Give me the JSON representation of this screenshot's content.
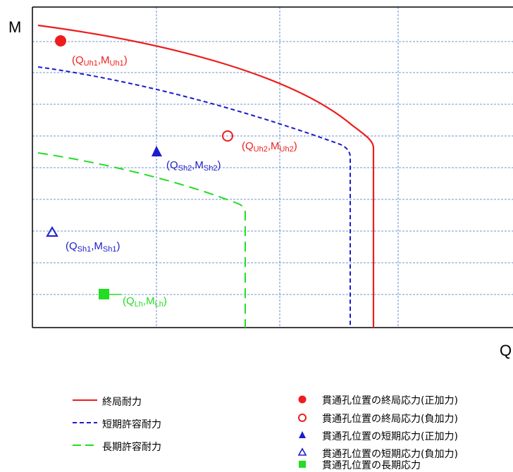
{
  "axes": {
    "y_label": "M",
    "x_label": "Q"
  },
  "colors": {
    "ultimate": "#ee1c1c",
    "short": "#1c1ccc",
    "long": "#22dd22",
    "grid": "#4472c4"
  },
  "points": [
    {
      "id": "uh1",
      "marker": "filled-circle",
      "color": "#ee1c1c",
      "label": {
        "base1": "(Q",
        "sub1": "Uh1",
        "base2": ",M",
        "sub2": "Uh1",
        "end": ")"
      }
    },
    {
      "id": "uh2",
      "marker": "open-circle",
      "color": "#ee1c1c",
      "label": {
        "base1": "(Q",
        "sub1": "Uh2",
        "base2": ",M",
        "sub2": "Uh2",
        "end": ")"
      }
    },
    {
      "id": "sh2",
      "marker": "filled-triangle",
      "color": "#1c1ccc",
      "label": {
        "base1": "(Q",
        "sub1": "Sh2",
        "base2": ",M",
        "sub2": "Sh2",
        "end": ")"
      }
    },
    {
      "id": "sh1",
      "marker": "open-triangle",
      "color": "#1c1ccc",
      "label": {
        "base1": "(Q",
        "sub1": "Sh1",
        "base2": ",M",
        "sub2": "Sh1",
        "end": ")"
      }
    },
    {
      "id": "lh",
      "marker": "filled-square",
      "color": "#22dd22",
      "label": {
        "base1": "(Q",
        "sub1": "Lh",
        "base2": ",M",
        "sub2": "Lh",
        "end": ")"
      }
    }
  ],
  "legend_left": [
    {
      "style": "solid",
      "color": "#ee1c1c",
      "label": "終局耐力"
    },
    {
      "style": "short-dash",
      "color": "#1c1ccc",
      "label": "短期許容耐力"
    },
    {
      "style": "long-dash",
      "color": "#22dd22",
      "label": "長期許容耐力"
    }
  ],
  "legend_right": [
    {
      "marker": "filled-circle",
      "color": "#ee1c1c",
      "label": "貫通孔位置の終局応力(正加力)"
    },
    {
      "marker": "open-circle",
      "color": "#ee1c1c",
      "label": "貫通孔位置の終局応力(負加力)"
    },
    {
      "marker": "filled-triangle",
      "color": "#1c1ccc",
      "label": "貫通孔位置の短期応力(正加力)"
    },
    {
      "marker": "open-triangle",
      "color": "#1c1ccc",
      "label": "貫通孔位置の短期応力(負加力)"
    },
    {
      "marker": "filled-square",
      "color": "#22dd22",
      "label": "貫通孔位置の長期応力"
    }
  ]
}
